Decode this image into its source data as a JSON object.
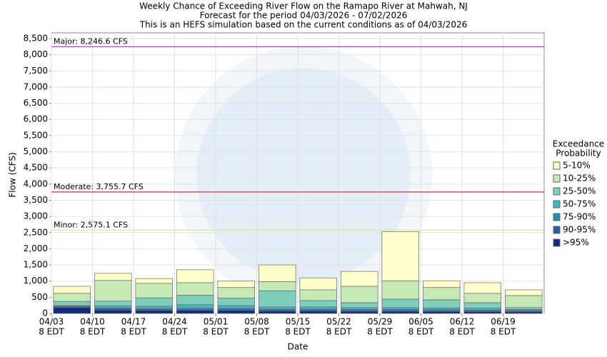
{
  "chart_data": {
    "type": "exceedance-bars",
    "title": [
      "Weekly Chance of Exceeding River Flow on the Ramapo River at Mahwah, NJ",
      "Forecast for the period 04/03/2026 - 07/02/2026",
      "This is an HEFS simulation based on the current conditions as of 04/03/2026"
    ],
    "ylabel": "Flow (CFS)",
    "xlabel": "Date",
    "xticks": [
      [
        "04/03",
        "8 EDT"
      ],
      [
        "04/10",
        "8 EDT"
      ],
      [
        "04/17",
        "8 EDT"
      ],
      [
        "04/24",
        "8 EDT"
      ],
      [
        "05/01",
        "8 EDT"
      ],
      [
        "05/08",
        "8 EDT"
      ],
      [
        "05/15",
        "8 EDT"
      ],
      [
        "05/22",
        "8 EDT"
      ],
      [
        "05/29",
        "8 EDT"
      ],
      [
        "06/05",
        "8 EDT"
      ],
      [
        "06/12",
        "8 EDT"
      ],
      [
        "06/19",
        "8 EDT"
      ]
    ],
    "xlim": [
      0,
      12
    ],
    "ylim": [
      0,
      8500
    ],
    "yticks": [
      0,
      500,
      {
        "value": 1000,
        "label": "1,000"
      },
      {
        "value": 1500,
        "label": "1,500"
      },
      {
        "value": 2000,
        "label": "2,000"
      },
      {
        "value": 2500,
        "label": "2,500"
      },
      {
        "value": 3000,
        "label": "3,000"
      },
      {
        "value": 3500,
        "label": "3,500"
      },
      {
        "value": 4000,
        "label": "4,000"
      },
      {
        "value": 4500,
        "label": "4,500"
      },
      {
        "value": 5000,
        "label": "5,000"
      },
      {
        "value": 5500,
        "label": "5,500"
      },
      {
        "value": 6000,
        "label": "6,000"
      },
      {
        "value": 6500,
        "label": "6,500"
      },
      {
        "value": 7000,
        "label": "7,000"
      },
      {
        "value": 7500,
        "label": "7,500"
      },
      {
        "value": 8000,
        "label": "8,000"
      },
      {
        "value": 8500,
        "label": "8,500"
      }
    ],
    "grid": true,
    "thresholds": [
      {
        "value": 8246.6,
        "label": "Major: 8,246.6 CFS",
        "color": "#cc33cc"
      },
      {
        "value": 3755.7,
        "label": "Moderate: 3,755.7 CFS",
        "color": "#cc3333"
      },
      {
        "value": 2575.1,
        "label": "Minor: 2,575.1 CFS",
        "color": "#e6e68a"
      }
    ],
    "legend_title": [
      "Exceedance",
      "Probability"
    ],
    "series": [
      {
        "name": "5-10%",
        "color": "#ffffcc",
        "values": [
          840,
          1240,
          1080,
          1350,
          1000,
          1500,
          1100,
          1300,
          2530,
          1010,
          950,
          730
        ]
      },
      {
        "name": "10-25%",
        "color": "#c7e9b4",
        "values": [
          620,
          1020,
          930,
          950,
          800,
          980,
          730,
          840,
          1010,
          800,
          620,
          550
        ]
      },
      {
        "name": "25-50%",
        "color": "#7fcdbb",
        "values": [
          370,
          380,
          480,
          560,
          470,
          700,
          400,
          330,
          440,
          420,
          330,
          180
        ]
      },
      {
        "name": "50-75%",
        "color": "#41b6c4",
        "values": [
          240,
          230,
          220,
          270,
          240,
          200,
          200,
          180,
          180,
          170,
          160,
          120
        ]
      },
      {
        "name": "75-90%",
        "color": "#1d91c0",
        "values": [
          220,
          170,
          150,
          160,
          160,
          130,
          130,
          120,
          120,
          110,
          100,
          90
        ]
      },
      {
        "name": "90-95%",
        "color": "#225ea8",
        "values": [
          200,
          140,
          120,
          120,
          120,
          100,
          100,
          90,
          90,
          80,
          80,
          70
        ]
      },
      {
        "name": ">95%",
        "color": "#0c2c84",
        "values": [
          180,
          100,
          90,
          90,
          90,
          70,
          70,
          60,
          60,
          60,
          50,
          50
        ]
      }
    ]
  }
}
